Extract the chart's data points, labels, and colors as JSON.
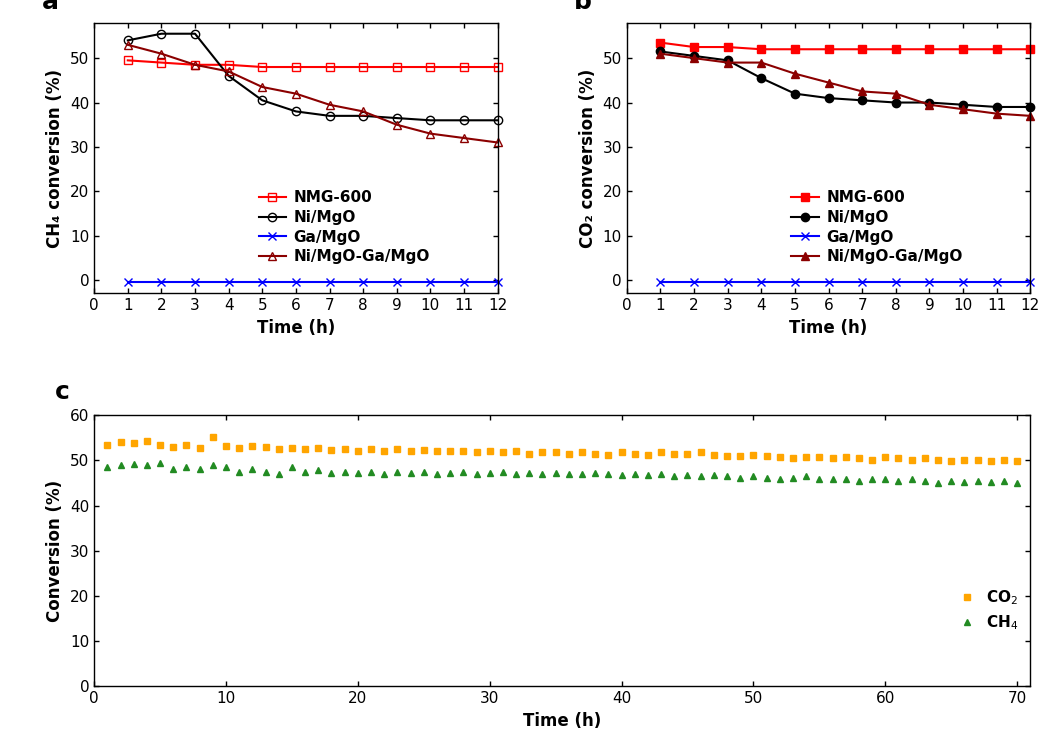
{
  "panel_a": {
    "title": "a",
    "xlabel": "Time (h)",
    "ylabel": "CH₄ conversion (%)",
    "ylim": [
      -3,
      58
    ],
    "yticks": [
      0,
      10,
      20,
      30,
      40,
      50
    ],
    "xlim": [
      0,
      12
    ],
    "xticks": [
      0,
      1,
      2,
      3,
      4,
      5,
      6,
      7,
      8,
      9,
      10,
      11,
      12
    ],
    "series": [
      {
        "name": "NMG-600",
        "x": [
          1,
          2,
          3,
          4,
          5,
          6,
          7,
          8,
          9,
          10,
          11,
          12
        ],
        "y": [
          49.5,
          49.0,
          48.5,
          48.5,
          48.0,
          48.0,
          48.0,
          48.0,
          48.0,
          48.0,
          48.0,
          48.0
        ],
        "color": "#FF0000",
        "marker": "s",
        "markerface": "none",
        "linewidth": 1.5,
        "markersize": 6
      },
      {
        "name": "Ni/MgO",
        "x": [
          1,
          2,
          3,
          4,
          5,
          6,
          7,
          8,
          9,
          10,
          11,
          12
        ],
        "y": [
          54.0,
          55.5,
          55.5,
          46.0,
          40.5,
          38.0,
          37.0,
          37.0,
          36.5,
          36.0,
          36.0,
          36.0
        ],
        "color": "#000000",
        "marker": "o",
        "markerface": "none",
        "linewidth": 1.5,
        "markersize": 6
      },
      {
        "name": "Ga/MgO",
        "x": [
          1,
          2,
          3,
          4,
          5,
          6,
          7,
          8,
          9,
          10,
          11,
          12
        ],
        "y": [
          -0.5,
          -0.5,
          -0.5,
          -0.5,
          -0.5,
          -0.5,
          -0.5,
          -0.5,
          -0.5,
          -0.5,
          -0.5,
          -0.5
        ],
        "color": "#0000FF",
        "marker": "x",
        "markerface": "full",
        "linewidth": 1.5,
        "markersize": 6
      },
      {
        "name": "Ni/MgO-Ga/MgO",
        "x": [
          1,
          2,
          3,
          4,
          5,
          6,
          7,
          8,
          9,
          10,
          11,
          12
        ],
        "y": [
          53.0,
          51.0,
          48.5,
          47.0,
          43.5,
          42.0,
          39.5,
          38.0,
          35.0,
          33.0,
          32.0,
          31.0
        ],
        "color": "#8B0000",
        "marker": "^",
        "markerface": "none",
        "linewidth": 1.5,
        "markersize": 6
      }
    ]
  },
  "panel_b": {
    "title": "b",
    "xlabel": "Time (h)",
    "ylabel": "CO₂ conversion (%)",
    "ylim": [
      -3,
      58
    ],
    "yticks": [
      0,
      10,
      20,
      30,
      40,
      50
    ],
    "xlim": [
      0,
      12
    ],
    "xticks": [
      0,
      1,
      2,
      3,
      4,
      5,
      6,
      7,
      8,
      9,
      10,
      11,
      12
    ],
    "series": [
      {
        "name": "NMG-600",
        "x": [
          1,
          2,
          3,
          4,
          5,
          6,
          7,
          8,
          9,
          10,
          11,
          12
        ],
        "y": [
          53.5,
          52.5,
          52.5,
          52.0,
          52.0,
          52.0,
          52.0,
          52.0,
          52.0,
          52.0,
          52.0,
          52.0
        ],
        "color": "#FF0000",
        "marker": "s",
        "markerface": "full",
        "linewidth": 1.5,
        "markersize": 6
      },
      {
        "name": "Ni/MgO",
        "x": [
          1,
          2,
          3,
          4,
          5,
          6,
          7,
          8,
          9,
          10,
          11,
          12
        ],
        "y": [
          51.5,
          50.5,
          49.5,
          45.5,
          42.0,
          41.0,
          40.5,
          40.0,
          40.0,
          39.5,
          39.0,
          39.0
        ],
        "color": "#000000",
        "marker": "o",
        "markerface": "full",
        "linewidth": 1.5,
        "markersize": 6
      },
      {
        "name": "Ga/MgO",
        "x": [
          1,
          2,
          3,
          4,
          5,
          6,
          7,
          8,
          9,
          10,
          11,
          12
        ],
        "y": [
          -0.5,
          -0.5,
          -0.5,
          -0.5,
          -0.5,
          -0.5,
          -0.5,
          -0.5,
          -0.5,
          -0.5,
          -0.5,
          -0.5
        ],
        "color": "#0000FF",
        "marker": "x",
        "markerface": "full",
        "linewidth": 1.5,
        "markersize": 6
      },
      {
        "name": "Ni/MgO-Ga/MgO",
        "x": [
          1,
          2,
          3,
          4,
          5,
          6,
          7,
          8,
          9,
          10,
          11,
          12
        ],
        "y": [
          51.0,
          50.0,
          49.0,
          49.0,
          46.5,
          44.5,
          42.5,
          42.0,
          39.5,
          38.5,
          37.5,
          37.0
        ],
        "color": "#8B0000",
        "marker": "^",
        "markerface": "full",
        "linewidth": 1.5,
        "markersize": 6
      }
    ]
  },
  "panel_c": {
    "title": "c",
    "xlabel": "Time (h)",
    "ylabel": "Conversion (%)",
    "ylim": [
      0,
      60
    ],
    "yticks": [
      0,
      10,
      20,
      30,
      40,
      50,
      60
    ],
    "xlim": [
      0,
      71
    ],
    "xticks": [
      0,
      10,
      20,
      30,
      40,
      50,
      60,
      70
    ],
    "co2_color": "#FFA500",
    "ch4_color": "#228B22",
    "co2_x": [
      1,
      2,
      3,
      4,
      5,
      6,
      7,
      8,
      9,
      10,
      11,
      12,
      13,
      14,
      15,
      16,
      17,
      18,
      19,
      20,
      21,
      22,
      23,
      24,
      25,
      26,
      27,
      28,
      29,
      30,
      31,
      32,
      33,
      34,
      35,
      36,
      37,
      38,
      39,
      40,
      41,
      42,
      43,
      44,
      45,
      46,
      47,
      48,
      49,
      50,
      51,
      52,
      53,
      54,
      55,
      56,
      57,
      58,
      59,
      60,
      61,
      62,
      63,
      64,
      65,
      66,
      67,
      68,
      69,
      70
    ],
    "co2_values": [
      53.5,
      54.0,
      53.8,
      54.2,
      53.5,
      53.0,
      53.5,
      52.8,
      55.2,
      53.2,
      52.8,
      53.2,
      53.0,
      52.5,
      52.8,
      52.5,
      52.8,
      52.3,
      52.5,
      52.2,
      52.5,
      52.0,
      52.5,
      52.2,
      52.3,
      52.0,
      52.0,
      52.2,
      51.8,
      52.0,
      51.8,
      52.0,
      51.5,
      51.8,
      51.8,
      51.5,
      51.8,
      51.5,
      51.2,
      51.8,
      51.5,
      51.2,
      51.8,
      51.5,
      51.5,
      51.8,
      51.2,
      51.0,
      51.0,
      51.2,
      51.0,
      50.8,
      50.5,
      50.8,
      50.8,
      50.5,
      50.8,
      50.5,
      50.2,
      50.8,
      50.5,
      50.0,
      50.5,
      50.0,
      49.8,
      50.0,
      50.2,
      49.8,
      50.0,
      49.8
    ],
    "ch4_x": [
      1,
      2,
      3,
      4,
      5,
      6,
      7,
      8,
      9,
      10,
      11,
      12,
      13,
      14,
      15,
      16,
      17,
      18,
      19,
      20,
      21,
      22,
      23,
      24,
      25,
      26,
      27,
      28,
      29,
      30,
      31,
      32,
      33,
      34,
      35,
      36,
      37,
      38,
      39,
      40,
      41,
      42,
      43,
      44,
      45,
      46,
      47,
      48,
      49,
      50,
      51,
      52,
      53,
      54,
      55,
      56,
      57,
      58,
      59,
      60,
      61,
      62,
      63,
      64,
      65,
      66,
      67,
      68,
      69,
      70
    ],
    "ch4_values": [
      48.5,
      49.0,
      49.2,
      49.0,
      49.5,
      48.2,
      48.5,
      48.0,
      49.0,
      48.5,
      47.5,
      48.0,
      47.5,
      47.0,
      48.5,
      47.5,
      47.8,
      47.2,
      47.5,
      47.2,
      47.5,
      47.0,
      47.5,
      47.2,
      47.5,
      47.0,
      47.2,
      47.5,
      47.0,
      47.2,
      47.5,
      47.0,
      47.2,
      47.0,
      47.2,
      47.0,
      47.0,
      47.2,
      47.0,
      46.8,
      47.0,
      46.8,
      47.0,
      46.5,
      46.8,
      46.5,
      46.8,
      46.5,
      46.2,
      46.5,
      46.2,
      46.0,
      46.2,
      46.5,
      46.0,
      45.8,
      46.0,
      45.5,
      45.8,
      46.0,
      45.5,
      45.8,
      45.5,
      45.0,
      45.5,
      45.2,
      45.5,
      45.2,
      45.5,
      45.0
    ]
  },
  "fontsize": 11,
  "label_fontsize": 12,
  "tick_fontsize": 11
}
